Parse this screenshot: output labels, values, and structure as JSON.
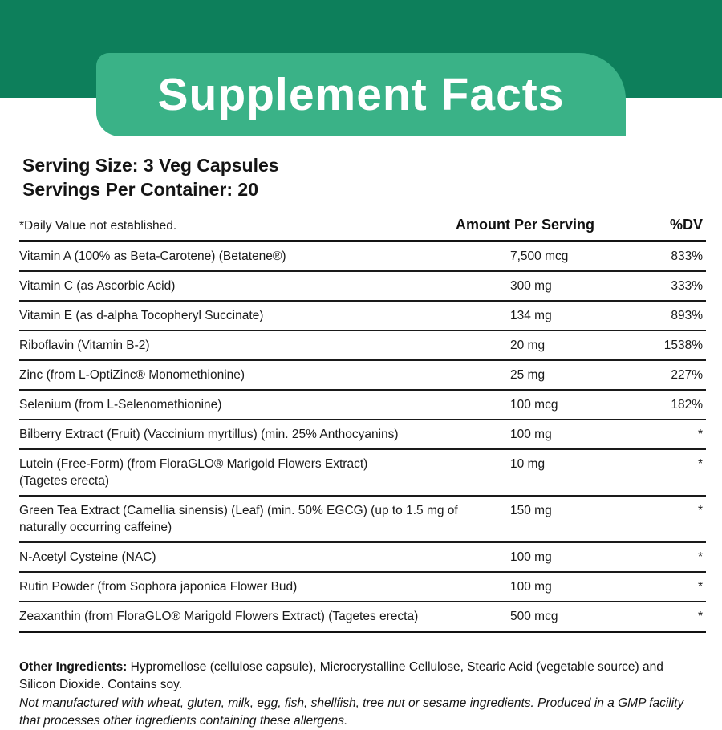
{
  "header": {
    "title": "Supplement Facts",
    "band_color": "#0d7f5b",
    "banner_color": "#3ab287"
  },
  "serving": {
    "size": "Serving Size: 3 Veg Capsules",
    "per_container": "Servings Per Container: 20"
  },
  "table": {
    "note": "*Daily Value not established.",
    "col_amount": "Amount Per Serving",
    "col_dv": "%DV",
    "rows": [
      {
        "name": "Vitamin A (100% as Beta-Carotene) (Betatene®)",
        "amount": "7,500 mcg",
        "dv": "833%"
      },
      {
        "name": "Vitamin C (as Ascorbic Acid)",
        "amount": "300 mg",
        "dv": "333%"
      },
      {
        "name": "Vitamin E (as d-alpha Tocopheryl Succinate)",
        "amount": "134 mg",
        "dv": "893%"
      },
      {
        "name": "Riboflavin (Vitamin B-2)",
        "amount": "20 mg",
        "dv": "1538%"
      },
      {
        "name": "Zinc (from L-OptiZinc® Monomethionine)",
        "amount": "25 mg",
        "dv": "227%"
      },
      {
        "name": "Selenium (from L-Selenomethionine)",
        "amount": "100 mcg",
        "dv": "182%"
      },
      {
        "name": "Bilberry Extract (Fruit) (Vaccinium myrtillus) (min. 25% Anthocyanins)",
        "amount": "100 mg",
        "dv": "*"
      },
      {
        "name": "Lutein (Free-Form) (from FloraGLO® Marigold Flowers Extract)\n(Tagetes erecta)",
        "amount": "10 mg",
        "dv": "*"
      },
      {
        "name": "Green Tea Extract (Camellia sinensis) (Leaf) (min. 50% EGCG) (up to 1.5 mg of\nnaturally occurring caffeine)",
        "amount": "150 mg",
        "dv": "*"
      },
      {
        "name": "N-Acetyl Cysteine (NAC)",
        "amount": "100 mg",
        "dv": "*"
      },
      {
        "name": "Rutin Powder (from Sophora japonica Flower Bud)",
        "amount": "100 mg",
        "dv": "*"
      },
      {
        "name": "Zeaxanthin (from FloraGLO® Marigold Flowers Extract) (Tagetes erecta)",
        "amount": "500 mcg",
        "dv": "*"
      }
    ]
  },
  "footer": {
    "other_ingredients_label": "Other Ingredients:",
    "other_ingredients_text": "Hypromellose (cellulose capsule), Microcrystalline Cellulose, Stearic Acid (vegetable source) and Silicon Dioxide. Contains soy.",
    "allergen_note": "Not manufactured with wheat, gluten, milk, egg, fish, shellfish, tree nut or sesame ingredients. Produced in a GMP facility that processes other ingredients containing these allergens."
  }
}
